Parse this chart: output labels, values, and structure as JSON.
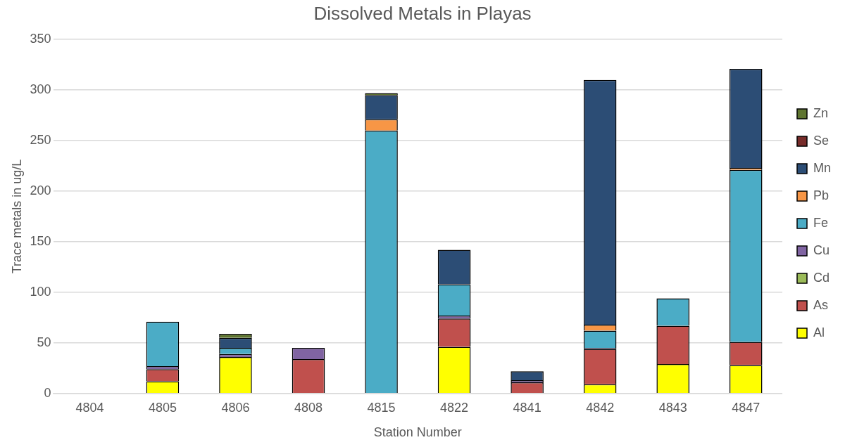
{
  "chart_data": {
    "type": "bar",
    "title": "Dissolved Metals in Playas",
    "xlabel": "Station Number",
    "ylabel": "Trace metals in ug/L",
    "categories": [
      "4804",
      "4805",
      "4806",
      "4808",
      "4815",
      "4822",
      "4841",
      "4842",
      "4843",
      "4847"
    ],
    "stacked": true,
    "ylim": [
      0,
      350
    ],
    "yticks": [
      0,
      50,
      100,
      150,
      200,
      250,
      300,
      350
    ],
    "grid": "y",
    "legend": "right",
    "series": [
      {
        "name": "Al",
        "color": "#ffff00",
        "values": [
          0,
          12,
          36,
          0,
          0,
          46,
          0,
          9,
          29,
          28
        ]
      },
      {
        "name": "As",
        "color": "#c0504d",
        "values": [
          0,
          12,
          0,
          34,
          0,
          28,
          11,
          35,
          38,
          23
        ]
      },
      {
        "name": "Cd",
        "color": "#9bbb59",
        "values": [
          0,
          0,
          0,
          0,
          0,
          0,
          0,
          0,
          0,
          0
        ]
      },
      {
        "name": "Cu",
        "color": "#8064a2",
        "values": [
          0,
          3,
          3,
          11,
          0,
          3,
          2,
          1,
          0,
          0
        ]
      },
      {
        "name": "Fe",
        "color": "#4bacc6",
        "values": [
          0,
          44,
          6,
          0,
          260,
          31,
          0,
          17,
          27,
          170
        ]
      },
      {
        "name": "Pb",
        "color": "#f79646",
        "values": [
          0,
          0,
          0,
          0,
          11,
          0,
          0,
          6,
          0,
          2
        ]
      },
      {
        "name": "Mn",
        "color": "#2c4d75",
        "values": [
          0,
          0,
          10,
          0,
          24,
          34,
          9,
          242,
          0,
          98
        ]
      },
      {
        "name": "Se",
        "color": "#772c2a",
        "values": [
          0,
          0,
          0,
          0,
          0,
          0,
          0,
          0,
          0,
          0
        ]
      },
      {
        "name": "Zn",
        "color": "#5f7530",
        "values": [
          0,
          0,
          4,
          0,
          2,
          0,
          0,
          0,
          0,
          0
        ]
      }
    ]
  }
}
